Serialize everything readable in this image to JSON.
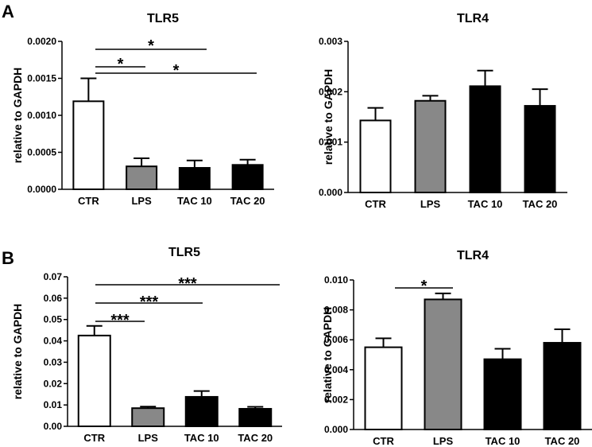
{
  "panels": [
    {
      "label": "A"
    },
    {
      "label": "B"
    }
  ],
  "chart_data": [
    {
      "type": "bar",
      "title": "TLR5",
      "ylabel": "relative to GAPDH",
      "categories": [
        "CTR",
        "LPS",
        "TAC 10",
        "TAC 20"
      ],
      "values": [
        0.00119,
        0.00031,
        0.00029,
        0.00033
      ],
      "errors": [
        0.00031,
        0.00011,
        0.0001,
        7e-05
      ],
      "fills": [
        "#ffffff",
        "#888888",
        "#000000",
        "#000000"
      ],
      "ylim": [
        0,
        0.002
      ],
      "yticks": [
        "0.0000",
        "0.0005",
        "0.0010",
        "0.0015",
        "0.0020"
      ],
      "significance": [
        {
          "from": 0,
          "to": 2,
          "label": "*"
        },
        {
          "from": 0,
          "to": 1,
          "label": "*"
        },
        {
          "from": 0,
          "to": 3,
          "label": "*"
        }
      ]
    },
    {
      "type": "bar",
      "title": "TLR4",
      "ylabel": "relative to GAPDH",
      "categories": [
        "CTR",
        "LPS",
        "TAC 10",
        "TAC 20"
      ],
      "values": [
        0.00143,
        0.00182,
        0.00211,
        0.00172
      ],
      "errors": [
        0.00025,
        0.0001,
        0.00031,
        0.00033
      ],
      "fills": [
        "#ffffff",
        "#888888",
        "#000000",
        "#000000"
      ],
      "ylim": [
        0,
        0.003
      ],
      "yticks": [
        "0.000",
        "0.001",
        "0.002",
        "0.003"
      ],
      "significance": []
    },
    {
      "type": "bar",
      "title": "TLR5",
      "ylabel": "relative to GAPDH",
      "categories": [
        "CTR",
        "LPS",
        "TAC 10",
        "TAC 20"
      ],
      "values": [
        0.0425,
        0.0085,
        0.0138,
        0.0082
      ],
      "errors": [
        0.0045,
        0.0007,
        0.0027,
        0.0009
      ],
      "fills": [
        "#ffffff",
        "#888888",
        "#000000",
        "#000000"
      ],
      "ylim": [
        0,
        0.07
      ],
      "yticks": [
        "0.00",
        "0.01",
        "0.02",
        "0.03",
        "0.04",
        "0.05",
        "0.06",
        "0.07"
      ],
      "significance": [
        {
          "from": 0,
          "to": 3,
          "label": "***"
        },
        {
          "from": 0,
          "to": 2,
          "label": "***"
        },
        {
          "from": 0,
          "to": 1,
          "label": "***"
        }
      ]
    },
    {
      "type": "bar",
      "title": "TLR4",
      "ylabel": "relative to GAPDH",
      "categories": [
        "CTR",
        "LPS",
        "TAC 10",
        "TAC 20"
      ],
      "values": [
        0.0055,
        0.0087,
        0.0047,
        0.0058
      ],
      "errors": [
        0.0006,
        0.0004,
        0.0007,
        0.0009
      ],
      "fills": [
        "#ffffff",
        "#888888",
        "#000000",
        "#000000"
      ],
      "ylim": [
        0,
        0.01
      ],
      "yticks": [
        "0.000",
        "0.002",
        "0.004",
        "0.006",
        "0.008",
        "0.010"
      ],
      "significance": [
        {
          "from": 0,
          "to": 1,
          "label": "*"
        }
      ]
    }
  ]
}
